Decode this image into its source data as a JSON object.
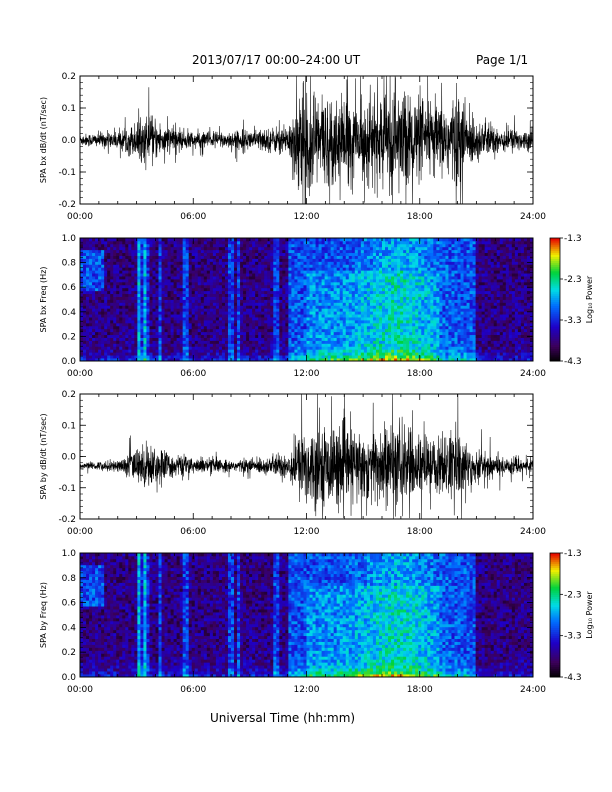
{
  "header": {
    "title": "2013/07/17  00:00–24:00 UT",
    "page": "Page 1/1"
  },
  "xlabel": "Universal Time (hh:mm)",
  "chart_data": [
    {
      "type": "line",
      "ylabel": "SPA bx dB/dt (nT/sec)",
      "x_ticks": [
        "00:00",
        "06:00",
        "12:00",
        "18:00",
        "24:00"
      ],
      "xlim_hours": [
        0,
        24
      ],
      "ylim": [
        -0.2,
        0.2
      ],
      "y_ticks": [
        "-0.2",
        "-0.1",
        "0.0",
        "0.1",
        "0.2"
      ],
      "baseline": 0.0,
      "activity_envelope": {
        "hours": [
          0,
          2,
          3,
          3.5,
          5,
          6,
          8,
          10,
          11,
          11.5,
          12,
          13,
          14,
          15,
          16,
          17,
          18,
          19,
          20,
          21,
          22,
          23,
          24
        ],
        "amplitude": [
          0.02,
          0.03,
          0.06,
          0.08,
          0.04,
          0.03,
          0.03,
          0.04,
          0.05,
          0.16,
          0.2,
          0.15,
          0.14,
          0.12,
          0.16,
          0.18,
          0.14,
          0.12,
          0.16,
          0.07,
          0.05,
          0.04,
          0.03
        ]
      }
    },
    {
      "type": "heatmap",
      "ylabel": "SPA bx Freq (Hz)",
      "x_ticks": [
        "00:00",
        "06:00",
        "12:00",
        "18:00",
        "24:00"
      ],
      "xlim_hours": [
        0,
        24
      ],
      "ylim": [
        0.0,
        1.0
      ],
      "y_ticks": [
        "0.0",
        "0.2",
        "0.4",
        "0.6",
        "0.8",
        "1.0"
      ],
      "colorbar": {
        "label": "Log₁₀ Power",
        "ticks": [
          "-1.3",
          "-2.3",
          "-3.3",
          "-4.3"
        ],
        "range": [
          -4.3,
          -1.3
        ]
      }
    },
    {
      "type": "line",
      "ylabel": "SPA by dB/dt (nT/sec)",
      "x_ticks": [
        "00:00",
        "06:00",
        "12:00",
        "18:00",
        "24:00"
      ],
      "xlim_hours": [
        0,
        24
      ],
      "ylim": [
        -0.2,
        0.2
      ],
      "y_ticks": [
        "-0.2",
        "-0.1",
        "0.0",
        "0.1",
        "0.2"
      ],
      "baseline": -0.03,
      "activity_envelope": {
        "hours": [
          0,
          2,
          3,
          3.5,
          5,
          6,
          8,
          10,
          11,
          11.5,
          12,
          13,
          14,
          15,
          16,
          17,
          18,
          19,
          20,
          21,
          22,
          23,
          24
        ],
        "amplitude": [
          0.01,
          0.02,
          0.06,
          0.08,
          0.04,
          0.03,
          0.02,
          0.03,
          0.05,
          0.1,
          0.14,
          0.13,
          0.14,
          0.12,
          0.15,
          0.15,
          0.1,
          0.1,
          0.13,
          0.06,
          0.04,
          0.03,
          0.02
        ]
      }
    },
    {
      "type": "heatmap",
      "ylabel": "SPA by Freq (Hz)",
      "x_ticks": [
        "00:00",
        "06:00",
        "12:00",
        "18:00",
        "24:00"
      ],
      "xlim_hours": [
        0,
        24
      ],
      "ylim": [
        0.0,
        1.0
      ],
      "y_ticks": [
        "0.0",
        "0.2",
        "0.4",
        "0.6",
        "0.8",
        "1.0"
      ],
      "colorbar": {
        "label": "Log₁₀ Power",
        "ticks": [
          "-1.3",
          "-2.3",
          "-3.3",
          "-4.3"
        ],
        "range": [
          -4.3,
          -1.3
        ]
      }
    }
  ]
}
